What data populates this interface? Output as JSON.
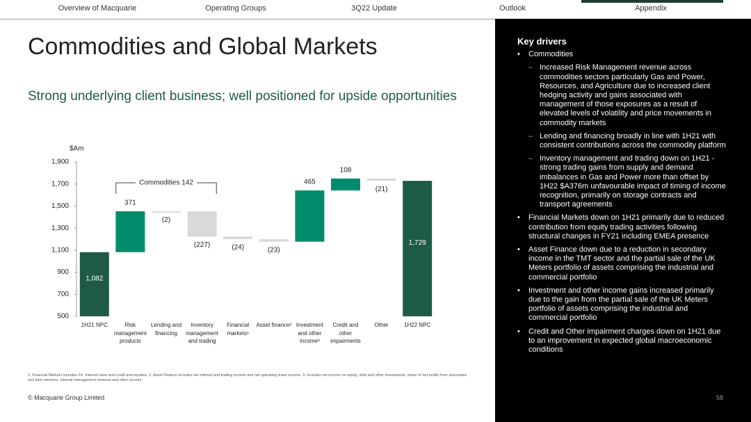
{
  "nav": {
    "items": [
      "Overview of Macquarie",
      "Operating Groups",
      "3Q22 Update",
      "Outlook",
      "Appendix"
    ],
    "active": 4
  },
  "title": "Commodities and Global Markets",
  "subtitle": "Strong underlying client business; well positioned for upside opportunities",
  "chart_data": {
    "type": "waterfall",
    "y_label": "$Am",
    "categories": [
      "1H21 NPC",
      "Risk management products",
      "Lending and financing",
      "Inventory management and trading",
      "Financial markets¹",
      "Asset finance²",
      "Investment and other income³",
      "Credit and other impairments",
      "Other",
      "1H22 NPC"
    ],
    "values": [
      1082,
      371,
      -2,
      -227,
      -24,
      -23,
      465,
      108,
      -21,
      1729
    ],
    "value_labels": [
      "1,082",
      "371",
      "(2)",
      "(227)",
      "(24)",
      "(23)",
      "465",
      "108",
      "(21)",
      "1,729"
    ],
    "measures": [
      "absolute",
      "relative",
      "relative",
      "relative",
      "relative",
      "relative",
      "relative",
      "relative",
      "relative",
      "total"
    ],
    "colors": [
      "#1d5b45",
      "#008c6c",
      "#d9d9d9",
      "#d9d9d9",
      "#d9d9d9",
      "#d9d9d9",
      "#008c6c",
      "#008c6c",
      "#d9d9d9",
      "#1d5b45"
    ],
    "annotation": "Commodities 142",
    "ylim": [
      500,
      1900
    ],
    "yticks": [
      500,
      700,
      900,
      {
        "value": 1100,
        "label": "1,100"
      },
      {
        "value": 1300,
        "label": "1,300"
      },
      {
        "value": 1500,
        "label": "1,500"
      },
      {
        "value": 1700,
        "label": "1,700"
      },
      {
        "value": 1900,
        "label": "1,900"
      }
    ]
  },
  "footnote": "1. Financial Markets includes FX, interest rates and credit and equities.  2. Asset Finance includes net interest and trading income and net operating lease income.  3. Includes net income on equity, debt and other investments, share of net profits from associates and joint ventures, internal management revenue and other income.",
  "footer": {
    "copyright": "© Macquarie Group Limited",
    "page": "58"
  },
  "key_drivers": {
    "title": "Key drivers",
    "items": [
      {
        "text": "Commodities",
        "subitems": [
          "Increased Risk Management revenue across commodities sectors particularly Gas and Power, Resources, and Agriculture due to increased client hedging activity and gains associated with management of those exposures as a result of elevated levels of volatility and price movements in commodity markets",
          "Lending and financing broadly in line with 1H21 with consistent contributions across the commodity platform",
          "Inventory management and trading down on 1H21 - strong trading gains from supply and demand imbalances in Gas and Power more than offset by 1H22 $A376m unfavourable impact of timing of income recognition, primarily on storage contracts and transport agreements"
        ]
      },
      {
        "text": "Financial Markets down on 1H21 primarily due to reduced contribution from equity trading activities following structural changes in FY21 including EMEA presence",
        "subitems": []
      },
      {
        "text": "Asset Finance down due to a reduction in secondary income in the TMT sector and the partial sale of the UK Meters portfolio of assets comprising the industrial and commercial portfolio",
        "subitems": []
      },
      {
        "text": "Investment and other income gains increased primarily due to the gain from the partial sale of the UK Meters portfolio of assets comprising the industrial and commercial portfolio",
        "subitems": []
      },
      {
        "text": "Credit and Other impairment charges down on 1H21 due to an improvement in expected global macroeconomic conditions",
        "subitems": []
      }
    ]
  }
}
